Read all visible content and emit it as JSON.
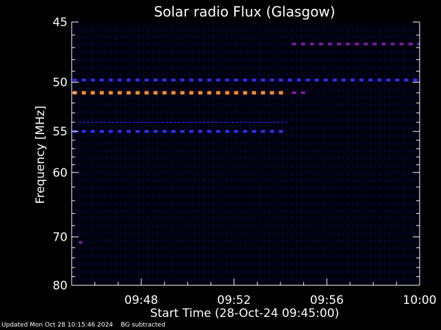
{
  "chart_data": {
    "type": "heatmap",
    "title": "Solar radio Flux (Glasgow)",
    "xlabel": "Start Time (28-Oct-24 09:45:00)",
    "ylabel": "Frequency [MHz]",
    "x_tick_labels": [
      "09:48",
      "09:52",
      "09:56",
      "10:00"
    ],
    "x_ticks_minutes": [
      3,
      7,
      11,
      15
    ],
    "xlim_minutes": [
      0,
      15
    ],
    "y_tick_labels": [
      "45",
      "50",
      "55",
      "60",
      "70",
      "80"
    ],
    "y_ticks": [
      45,
      50,
      55,
      60,
      70,
      80
    ],
    "ylim": [
      45,
      80
    ],
    "y_scale": "reciprocal",
    "colors": {
      "bright": "#ff8c30",
      "medium": "#3030ff",
      "dim": "#1a1a9a",
      "purple": "#7a1a9a",
      "faint": "#0a0a3a"
    },
    "bands": [
      {
        "freq": 51,
        "start_min": 0.05,
        "end_min": 9.3,
        "level": "bright"
      },
      {
        "freq": 51,
        "start_min": 9.5,
        "end_min": 10.1,
        "level": "purple"
      },
      {
        "freq": 55,
        "start_min": 0.05,
        "end_min": 9.3,
        "level": "medium"
      },
      {
        "freq": 49.8,
        "start_min": 0.05,
        "end_min": 15,
        "level": "medium"
      },
      {
        "freq": 46.7,
        "start_min": 9.5,
        "end_min": 15,
        "level": "purple"
      },
      {
        "freq": 54,
        "start_min": 0.3,
        "end_min": 9.3,
        "level": "dim"
      },
      {
        "freq": 71,
        "start_min": 0.3,
        "end_min": 0.45,
        "level": "purple"
      }
    ],
    "footer": "Updated Mon Oct 28 10:15:46 2024    BG subtracted"
  }
}
